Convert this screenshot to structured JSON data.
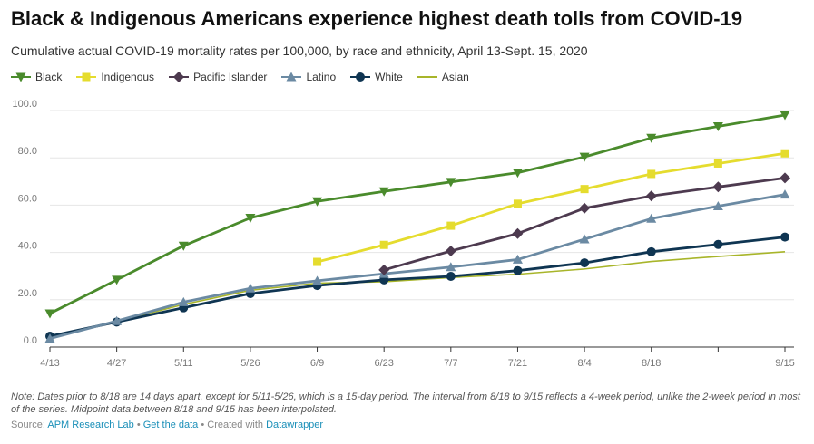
{
  "title": "Black & Indigenous Americans experience highest death tolls from COVID-19",
  "subtitle": "Cumulative actual COVID-19 mortality rates per 100,000, by race and ethnicity, April 13-Sept. 15, 2020",
  "note": "Note: Dates prior to 8/18 are 14 days apart, except for 5/11-5/26, which is a 15-day period. The interval from 8/18 to 9/15 reflects a 4-week period, unlike the 2-week period in most of the series. Midpoint data between 8/18 and 9/15 has been interpolated.",
  "footer": {
    "source_label": "Source:",
    "source": "APM Research Lab",
    "sep1": "•",
    "data_link": "Get the data",
    "sep2": "•",
    "created": "Created with",
    "tool": "Datawrapper"
  },
  "chart_data": {
    "type": "line",
    "title": "Black & Indigenous Americans experience highest death tolls from COVID-19",
    "subtitle": "Cumulative actual COVID-19 mortality rates per 100,000, by race and ethnicity, April 13-Sept. 15, 2020",
    "categories": [
      "4/13",
      "4/27",
      "5/11",
      "5/26",
      "6/9",
      "6/23",
      "7/7",
      "7/21",
      "8/4",
      "8/18",
      "",
      "9/15"
    ],
    "ylim": [
      0,
      100
    ],
    "yticks": [
      "0.0",
      "20.0",
      "40.0",
      "60.0",
      "80.0",
      "100.0"
    ],
    "grid": true,
    "legend_position": "top-left",
    "series": [
      {
        "name": "Black",
        "color": "#4a8b2c",
        "marker": "triangle-down",
        "values": [
          14.2,
          28.4,
          42.8,
          54.6,
          61.6,
          65.8,
          69.8,
          73.7,
          80.4,
          88.4,
          93.3,
          98.1
        ]
      },
      {
        "name": "Indigenous",
        "color": "#e5dc2e",
        "marker": "square",
        "values": [
          null,
          null,
          null,
          null,
          36.0,
          43.2,
          51.3,
          60.6,
          66.8,
          73.2,
          77.6,
          81.9
        ]
      },
      {
        "name": "Pacific Islander",
        "color": "#4d3a4f",
        "marker": "diamond",
        "values": [
          null,
          null,
          null,
          null,
          null,
          32.6,
          40.6,
          48.0,
          58.7,
          63.9,
          67.7,
          71.5
        ]
      },
      {
        "name": "Latino",
        "color": "#6b8aa3",
        "marker": "triangle-up",
        "values": [
          3.6,
          11.0,
          19.0,
          24.8,
          28.0,
          31.0,
          33.8,
          37.0,
          45.6,
          54.3,
          59.6,
          64.5
        ]
      },
      {
        "name": "White",
        "color": "#0f3552",
        "marker": "circle",
        "values": [
          4.6,
          10.6,
          16.6,
          22.6,
          26.0,
          28.4,
          29.9,
          32.3,
          35.6,
          40.3,
          43.4,
          46.5
        ]
      },
      {
        "name": "Asian",
        "color": "#a8b52a",
        "marker": "none",
        "values": [
          3.8,
          10.8,
          18.0,
          24.0,
          27.0,
          27.6,
          29.4,
          30.8,
          33.0,
          36.2,
          38.3,
          40.3
        ]
      }
    ]
  }
}
